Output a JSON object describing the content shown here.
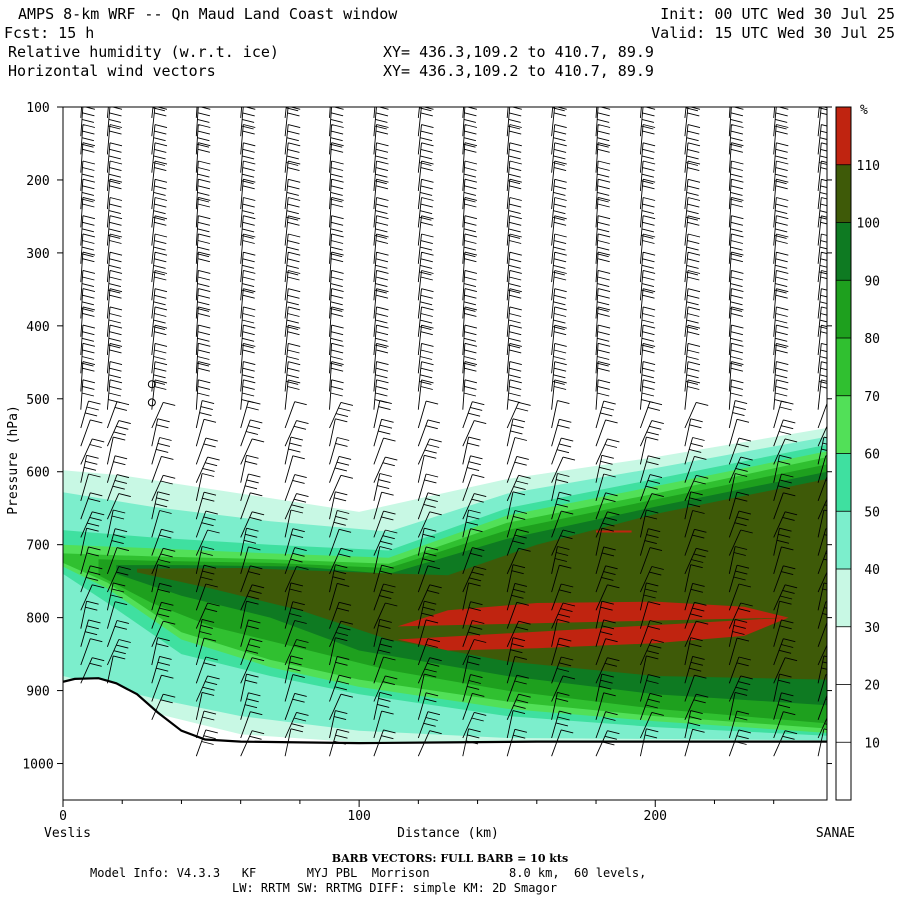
{
  "header": {
    "line1_left": "AMPS 8-km WRF -- Qn Maud Land Coast window",
    "line1_right": "Init: 00 UTC Wed 30 Jul 25",
    "line2_left": "Fcst:    15 h",
    "line2_right": "Valid: 15 UTC Wed 30 Jul 25",
    "line3_left": "Relative humidity (w.r.t. ice)",
    "line3_right": "XY= 436.3,109.2 to 410.7, 89.9",
    "line4_left": "Horizontal wind vectors",
    "line4_right": "XY= 436.3,109.2 to 410.7, 89.9"
  },
  "chart_data": {
    "type": "heatmap",
    "xlabel": "Distance (km)",
    "ylabel": "Pressure (hPa)",
    "xlim": [
      0,
      258
    ],
    "ylim": [
      1050,
      100
    ],
    "x_ticks": [
      0,
      100,
      200
    ],
    "y_ticks": [
      100,
      200,
      300,
      400,
      500,
      600,
      700,
      800,
      900,
      1000
    ],
    "x_end_labels": {
      "left": "Veslis",
      "right": "SANAE"
    },
    "colorbar": {
      "unit": "%",
      "levels": [
        10,
        20,
        30,
        40,
        50,
        60,
        70,
        80,
        90,
        100,
        110
      ],
      "colors": [
        "#ffffff",
        "#ffffff",
        "#ffffff",
        "#c8f8e4",
        "#7ceecc",
        "#3fe0a0",
        "#52e058",
        "#30c030",
        "#1ea01e",
        "#0e7a22",
        "#3e5a08",
        "#c02410"
      ]
    },
    "terrain": [
      [
        0,
        888
      ],
      [
        4,
        884
      ],
      [
        12,
        883
      ],
      [
        18,
        890
      ],
      [
        25,
        905
      ],
      [
        32,
        930
      ],
      [
        40,
        955
      ],
      [
        48,
        967
      ],
      [
        60,
        970
      ],
      [
        80,
        971
      ],
      [
        100,
        972
      ],
      [
        130,
        971
      ],
      [
        160,
        970
      ],
      [
        200,
        970
      ],
      [
        258,
        970
      ]
    ],
    "rh_layers": [
      {
        "label": "30-40",
        "color": "#c8f8e4",
        "top": [
          [
            0,
            598
          ],
          [
            20,
            605
          ],
          [
            60,
            630
          ],
          [
            100,
            655
          ],
          [
            150,
            610
          ],
          [
            200,
            580
          ],
          [
            258,
            540
          ]
        ],
        "bottom": [
          [
            0,
            888
          ],
          [
            30,
            930
          ],
          [
            60,
            960
          ],
          [
            100,
            971
          ],
          [
            258,
            970
          ]
        ]
      },
      {
        "label": "40-50",
        "color": "#7ceecc",
        "top": [
          [
            0,
            628
          ],
          [
            30,
            648
          ],
          [
            70,
            668
          ],
          [
            110,
            682
          ],
          [
            150,
            630
          ],
          [
            200,
            595
          ],
          [
            258,
            552
          ]
        ],
        "bottom": [
          [
            0,
            880
          ],
          [
            30,
            910
          ],
          [
            60,
            935
          ],
          [
            100,
            955
          ],
          [
            150,
            965
          ],
          [
            258,
            968
          ]
        ]
      },
      {
        "label": "50-60",
        "color": "#3fe0a0",
        "top": [
          [
            0,
            680
          ],
          [
            30,
            690
          ],
          [
            70,
            700
          ],
          [
            110,
            708
          ],
          [
            150,
            650
          ],
          [
            200,
            610
          ],
          [
            258,
            563
          ]
        ],
        "bottom": [
          [
            0,
            740
          ],
          [
            15,
            780
          ],
          [
            40,
            850
          ],
          [
            70,
            880
          ],
          [
            100,
            905
          ],
          [
            150,
            935
          ],
          [
            200,
            950
          ],
          [
            258,
            962
          ]
        ]
      },
      {
        "label": "60-70",
        "color": "#52e058",
        "top": [
          [
            0,
            700
          ],
          [
            30,
            705
          ],
          [
            70,
            712
          ],
          [
            110,
            718
          ],
          [
            150,
            660
          ],
          [
            200,
            620
          ],
          [
            258,
            572
          ]
        ],
        "bottom": [
          [
            0,
            730
          ],
          [
            15,
            760
          ],
          [
            40,
            830
          ],
          [
            70,
            868
          ],
          [
            100,
            895
          ],
          [
            150,
            925
          ],
          [
            200,
            942
          ],
          [
            258,
            958
          ]
        ]
      },
      {
        "label": "70-80",
        "color": "#30c030",
        "top": [
          [
            0,
            712
          ],
          [
            30,
            716
          ],
          [
            70,
            720
          ],
          [
            110,
            726
          ],
          [
            150,
            670
          ],
          [
            200,
            630
          ],
          [
            258,
            580
          ]
        ],
        "bottom": [
          [
            0,
            725
          ],
          [
            15,
            752
          ],
          [
            40,
            820
          ],
          [
            70,
            858
          ],
          [
            100,
            885
          ],
          [
            150,
            915
          ],
          [
            200,
            935
          ],
          [
            258,
            952
          ]
        ]
      },
      {
        "label": "80-90",
        "color": "#1ea01e",
        "top": [
          [
            12,
            720
          ],
          [
            30,
            722
          ],
          [
            70,
            725
          ],
          [
            110,
            732
          ],
          [
            150,
            680
          ],
          [
            200,
            638
          ],
          [
            258,
            590
          ]
        ],
        "bottom": [
          [
            12,
            742
          ],
          [
            30,
            780
          ],
          [
            50,
            812
          ],
          [
            80,
            842
          ],
          [
            110,
            872
          ],
          [
            150,
            900
          ],
          [
            200,
            925
          ],
          [
            258,
            945
          ]
        ]
      },
      {
        "label": "90-100",
        "color": "#0e7a22",
        "top": [
          [
            18,
            728
          ],
          [
            40,
            728
          ],
          [
            80,
            730
          ],
          [
            110,
            740
          ],
          [
            150,
            692
          ],
          [
            200,
            648
          ],
          [
            258,
            600
          ]
        ],
        "bottom": [
          [
            18,
            740
          ],
          [
            40,
            770
          ],
          [
            70,
            800
          ],
          [
            100,
            845
          ],
          [
            150,
            880
          ],
          [
            200,
            905
          ],
          [
            258,
            920
          ]
        ]
      },
      {
        "label": "100-110",
        "color": "#3e5a08",
        "top": [
          [
            25,
            733
          ],
          [
            60,
            732
          ],
          [
            100,
            738
          ],
          [
            130,
            742
          ],
          [
            160,
            700
          ],
          [
            200,
            658
          ],
          [
            258,
            610
          ]
        ],
        "bottom": [
          [
            25,
            738
          ],
          [
            50,
            760
          ],
          [
            80,
            790
          ],
          [
            110,
            830
          ],
          [
            150,
            860
          ],
          [
            200,
            880
          ],
          [
            258,
            885
          ]
        ]
      },
      {
        "label": ">110",
        "color": "#c02410",
        "top": [
          [
            113,
            812
          ],
          [
            130,
            790
          ],
          [
            160,
            780
          ],
          [
            200,
            778
          ],
          [
            230,
            785
          ],
          [
            245,
            800
          ]
        ],
        "bottom": [
          [
            245,
            800
          ],
          [
            230,
            825
          ],
          [
            200,
            835
          ],
          [
            160,
            842
          ],
          [
            130,
            845
          ],
          [
            113,
            830
          ]
        ]
      }
    ],
    "rh_small_patch": {
      "color": "#c02410",
      "points": [
        [
          180,
          682
        ],
        [
          192,
          682
        ]
      ]
    },
    "calm_markers": [
      [
        30,
        480
      ],
      [
        30,
        505
      ]
    ],
    "barb_columns_x": [
      6,
      15,
      30,
      45,
      60,
      75,
      90,
      105,
      120,
      135,
      150,
      165,
      180,
      195,
      210,
      225,
      240,
      255
    ],
    "barb_levels_hPa": [
      115,
      140,
      165,
      190,
      215,
      240,
      265,
      290,
      315,
      340,
      365,
      390,
      415,
      440,
      465,
      490,
      515,
      540,
      565,
      590,
      615,
      640,
      665,
      690,
      715,
      740,
      765,
      790,
      815,
      840,
      865,
      890,
      915,
      940,
      965,
      990
    ],
    "barb_note": "BARB VECTORS:  FULL BARB = 10 kts"
  },
  "footer": {
    "barb_line": "BARB VECTORS:  FULL BARB = 10 kts",
    "model_line": "Model Info: V4.3.3   KF       MYJ PBL  Morrison           8.0 km,  60 levels,",
    "physics_line": "LW: RRTM SW: RRTMG   DIFF: simple KM: 2D Smagor"
  },
  "colors": {
    "terrain_line": "#000000",
    "axis": "#000000",
    "barb": "#000000"
  }
}
